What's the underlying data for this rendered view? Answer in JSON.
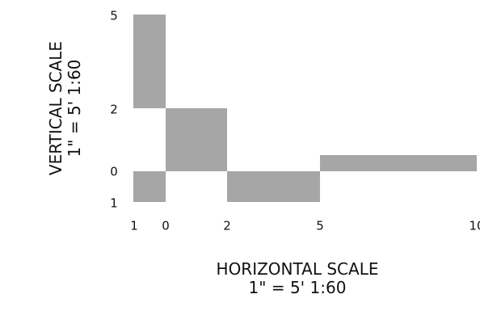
{
  "vertical_scale": {
    "title": "VERTICAL SCALE",
    "ratio": "1\" = 5'  1:60",
    "tick_labels": [
      "5",
      "2",
      "0",
      "1"
    ]
  },
  "horizontal_scale": {
    "title": "HORIZONTAL SCALE",
    "ratio": "1\" = 5'  1:60",
    "tick_labels": [
      "1",
      "0",
      "2",
      "5",
      "10"
    ]
  },
  "colors": {
    "bar_fill": "#a6a6a6",
    "text": "#111111",
    "background": "#ffffff"
  }
}
